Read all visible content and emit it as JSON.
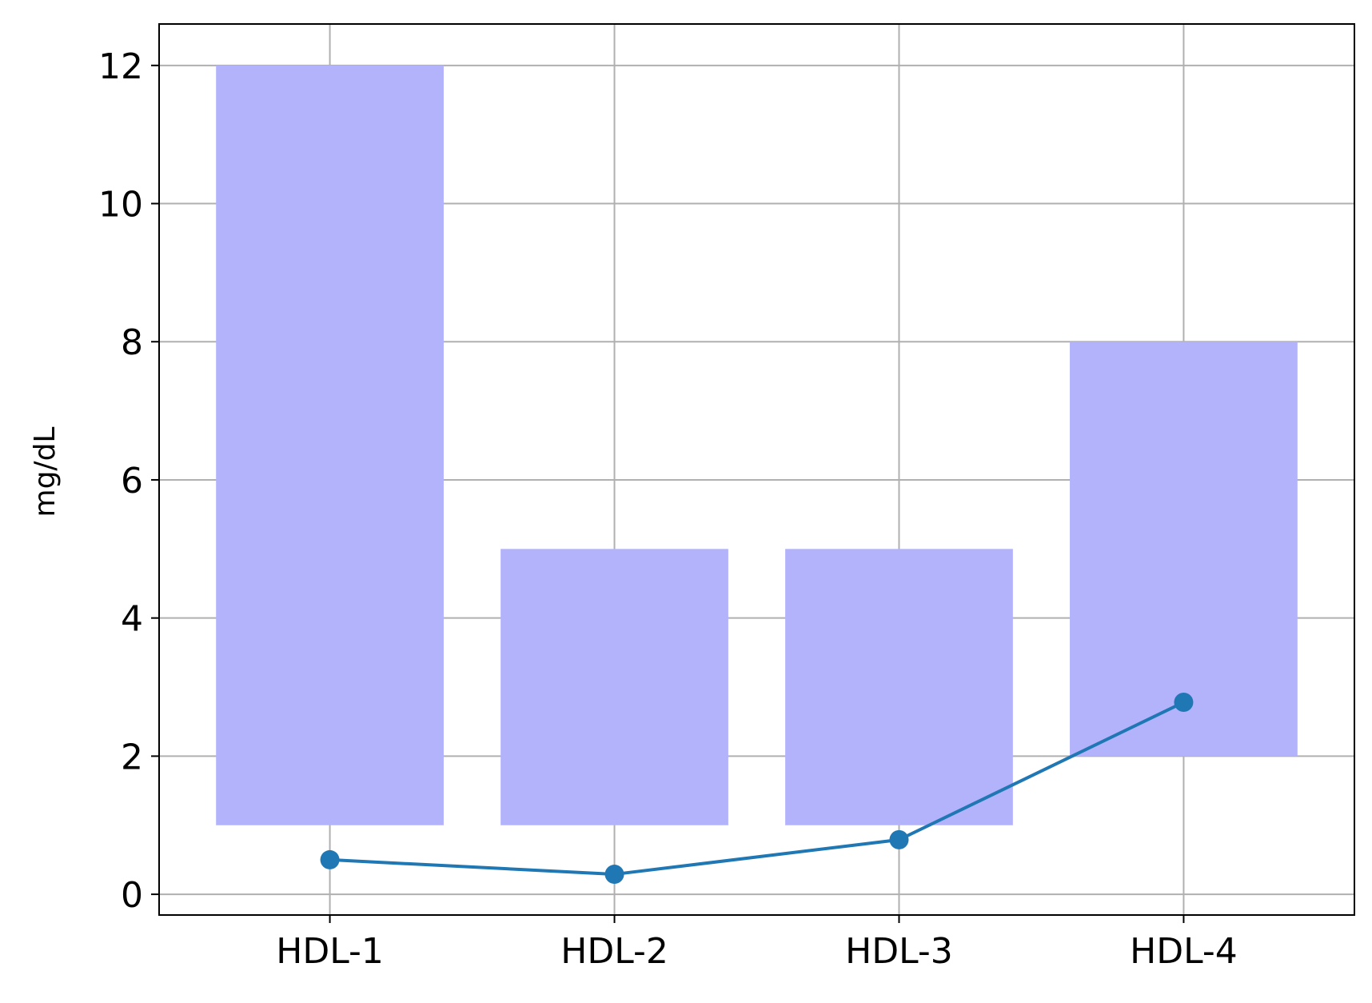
{
  "chart_data": {
    "type": "bar",
    "title": "",
    "xlabel": "",
    "ylabel": "mg/dL",
    "categories": [
      "HDL-1",
      "HDL-2",
      "HDL-3",
      "HDL-4"
    ],
    "ranges": [
      {
        "category": "HDL-1",
        "low": 1,
        "high": 12
      },
      {
        "category": "HDL-2",
        "low": 1,
        "high": 5
      },
      {
        "category": "HDL-3",
        "low": 1,
        "high": 5
      },
      {
        "category": "HDL-4",
        "low": 2,
        "high": 8
      }
    ],
    "series": [
      {
        "values": [
          0.5,
          0.29,
          0.79,
          2.78
        ]
      }
    ],
    "ylim": [
      -0.3,
      12.6
    ],
    "yticks": [
      "0",
      "2",
      "4",
      "6",
      "8",
      "10",
      "12"
    ],
    "grid": true,
    "colors": {
      "range_bar": "#b3b3fc",
      "line": "#1f77b4",
      "grid": "#b0b0b0",
      "axes": "#000000"
    }
  }
}
